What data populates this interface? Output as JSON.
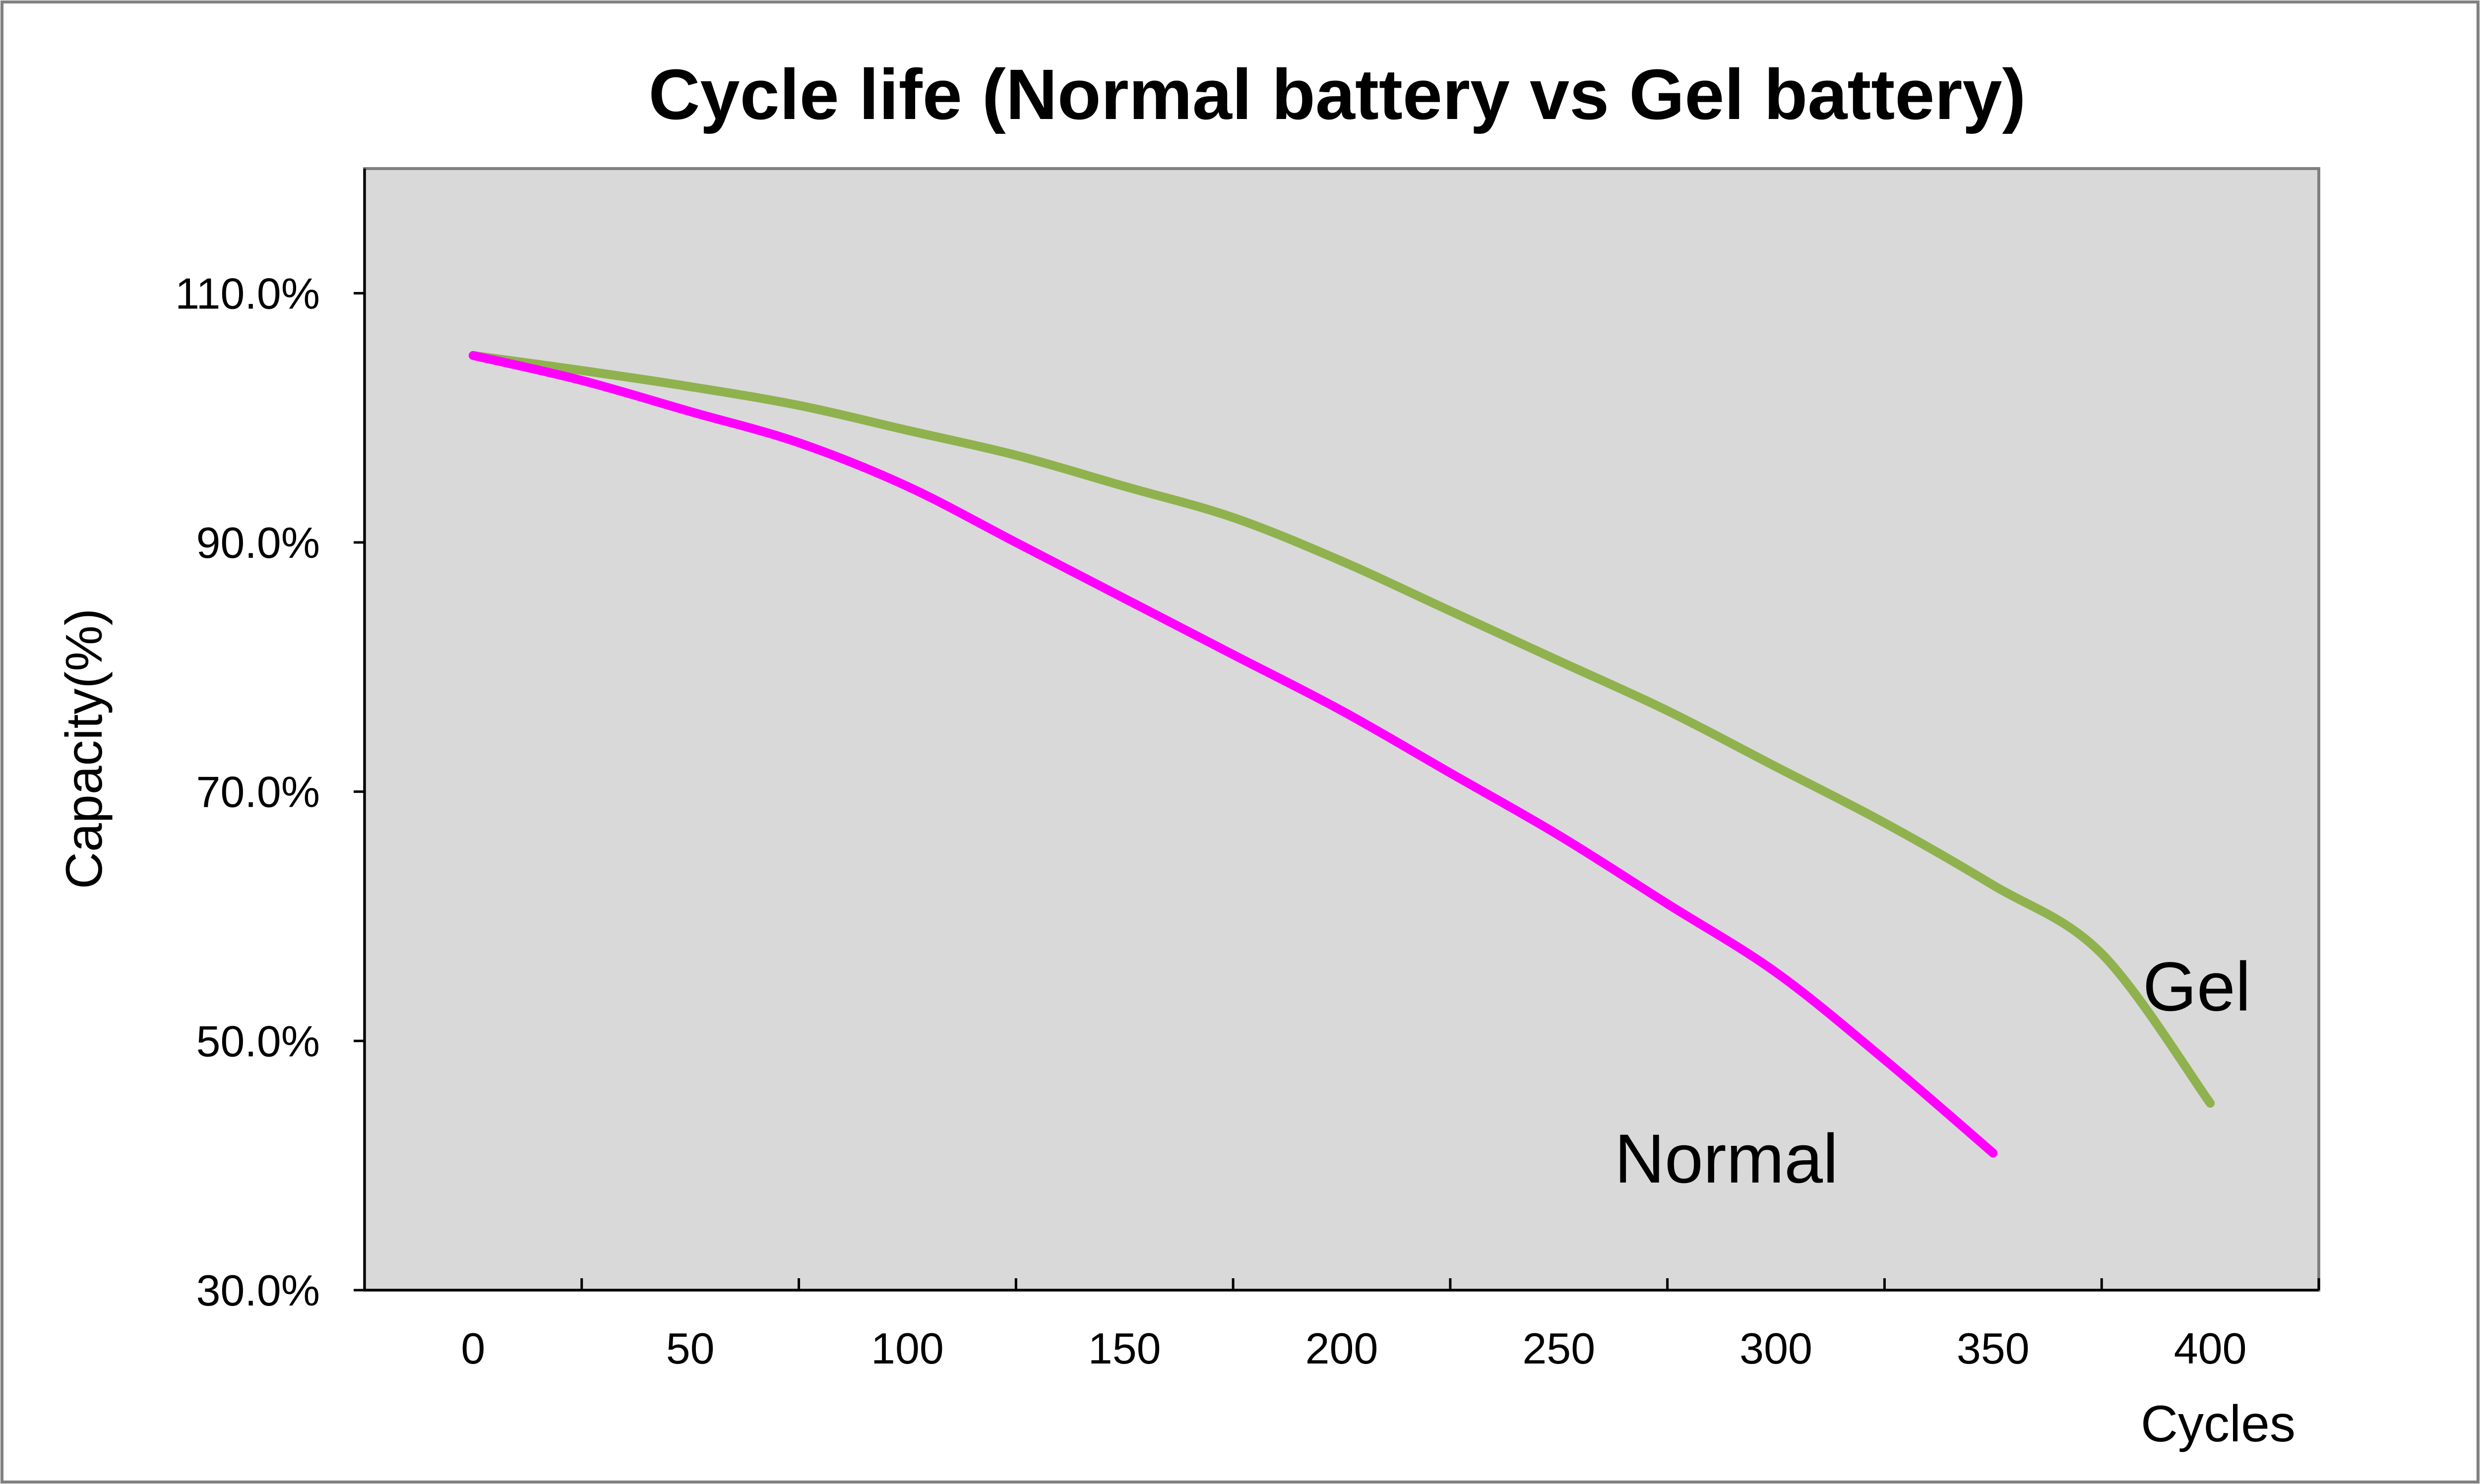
{
  "chart_data": {
    "type": "line",
    "title": "Cycle life (Normal battery vs Gel battery)",
    "xlabel": "Cycles",
    "ylabel": "Capacity(%)",
    "xlim": [
      -25,
      425
    ],
    "ylim": [
      30,
      120
    ],
    "x_ticks": [
      0,
      50,
      100,
      150,
      200,
      250,
      300,
      350,
      400
    ],
    "y_ticks": [
      30,
      50,
      70,
      90,
      110
    ],
    "y_tick_labels": [
      "30.0%",
      "50.0%",
      "70.0%",
      "90.0%",
      "110.0%"
    ],
    "grid": false,
    "legend": "none (series labelled directly on the plot)",
    "background_color": "#d9d9d9",
    "series": [
      {
        "name": "Normal",
        "color": "#ff00ff",
        "x": [
          0,
          25,
          50,
          75,
          100,
          125,
          150,
          175,
          200,
          225,
          250,
          275,
          300,
          325,
          350
        ],
        "values": [
          105,
          103,
          100.5,
          98,
          94.5,
          90,
          85.5,
          81,
          76.5,
          71.5,
          66.5,
          61,
          55.5,
          48.5,
          41
        ]
      },
      {
        "name": "Gel",
        "color": "#8fb24e",
        "x": [
          0,
          25,
          50,
          75,
          100,
          125,
          150,
          175,
          200,
          225,
          250,
          275,
          300,
          325,
          350,
          375,
          400
        ],
        "values": [
          105,
          103.8,
          102.5,
          101,
          99,
          97,
          94.5,
          92,
          88.5,
          84.5,
          80.5,
          76.5,
          72,
          67.5,
          62.5,
          57,
          45
        ]
      }
    ]
  }
}
